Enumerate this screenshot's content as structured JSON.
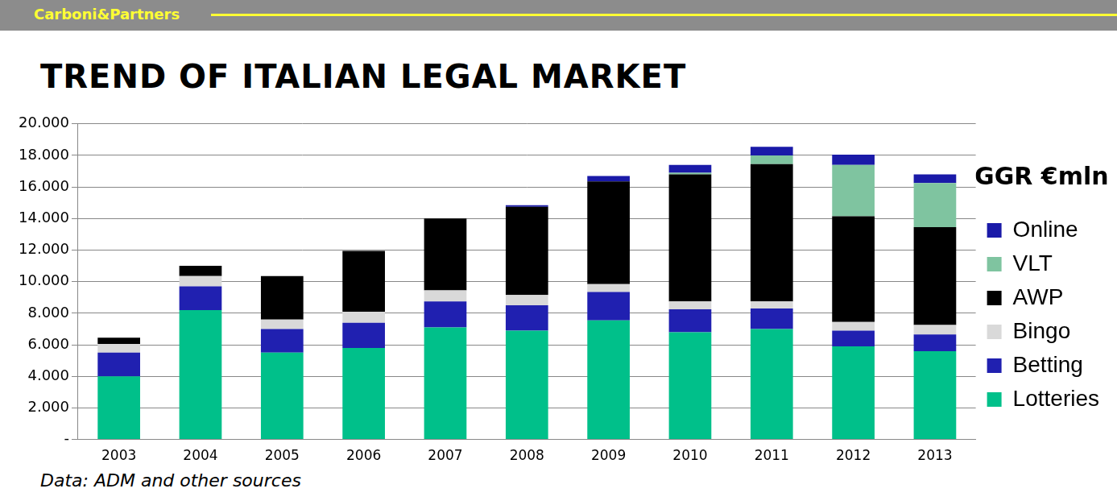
{
  "chart_data": {
    "type": "bar",
    "stacked": true,
    "header": "Carboni&Partners",
    "title": "TREND OF ITALIAN LEGAL MARKET",
    "source": "Data: ADM and other sources",
    "legend_title": "GGR €mln",
    "legend": "right",
    "grid": true,
    "categories": [
      "2003",
      "2004",
      "2005",
      "2006",
      "2007",
      "2008",
      "2009",
      "2010",
      "2011",
      "2012",
      "2013"
    ],
    "series": [
      {
        "name": "Lotteries",
        "color": "#00c08a",
        "values": [
          4000,
          8200,
          5500,
          5800,
          7100,
          6900,
          7550,
          6800,
          7000,
          5900,
          5600
        ]
      },
      {
        "name": "Betting",
        "color": "#2020b0",
        "values": [
          1500,
          1500,
          1500,
          1600,
          1650,
          1600,
          1800,
          1450,
          1300,
          1000,
          1050
        ]
      },
      {
        "name": "Bingo",
        "color": "#d9d9d9",
        "values": [
          550,
          650,
          600,
          700,
          700,
          650,
          500,
          500,
          450,
          550,
          600
        ]
      },
      {
        "name": "AWP",
        "color": "#000000",
        "values": [
          400,
          650,
          2750,
          3850,
          4550,
          5600,
          6500,
          8050,
          8700,
          6700,
          6200
        ]
      },
      {
        "name": "VLT",
        "color": "#7fc4a0",
        "values": [
          0,
          0,
          0,
          0,
          0,
          0,
          0,
          100,
          550,
          3250,
          2800
        ]
      },
      {
        "name": "Online",
        "color": "#1a1aa8",
        "values": [
          0,
          0,
          0,
          0,
          0,
          100,
          350,
          500,
          550,
          650,
          550
        ]
      }
    ],
    "ylim": [
      0,
      20000
    ],
    "yticks": [
      {
        "value": 0,
        "label": "-"
      },
      {
        "value": 2000,
        "label": "2.000"
      },
      {
        "value": 4000,
        "label": "4.000"
      },
      {
        "value": 6000,
        "label": "6.000"
      },
      {
        "value": 8000,
        "label": "8.000"
      },
      {
        "value": 10000,
        "label": "10.000"
      },
      {
        "value": 12000,
        "label": "12.000"
      },
      {
        "value": 14000,
        "label": "14.000"
      },
      {
        "value": 16000,
        "label": "16.000"
      },
      {
        "value": 18000,
        "label": "18.000"
      },
      {
        "value": 20000,
        "label": "20.000"
      }
    ]
  }
}
